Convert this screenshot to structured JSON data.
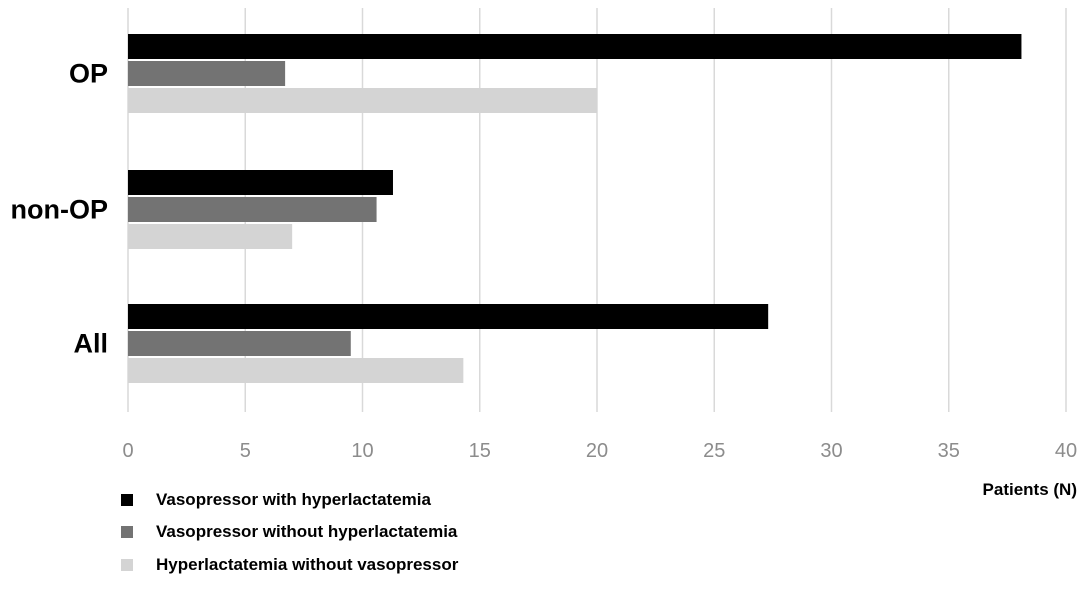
{
  "chart_data": {
    "type": "bar",
    "orientation": "horizontal",
    "categories": [
      "OP",
      "non-OP",
      "All"
    ],
    "series": [
      {
        "name": "Vasopressor with hyperlactatemia",
        "values": [
          38.1,
          11.3,
          27.3
        ],
        "color": "#000000"
      },
      {
        "name": "Vasopressor without hyperlactatemia",
        "values": [
          6.7,
          10.6,
          9.5
        ],
        "color": "#737373"
      },
      {
        "name": "Hyperlactatemia without vasopressor",
        "values": [
          20.0,
          7.0,
          14.3
        ],
        "color": "#d4d4d4"
      }
    ],
    "xlabel": "Patients (N)",
    "ylabel": "",
    "xlim": [
      0,
      40
    ],
    "xticks": [
      "0",
      "5",
      "10",
      "15",
      "20",
      "25",
      "30",
      "35",
      "40"
    ],
    "grid": "vertical",
    "legend_position": "bottom-left"
  }
}
